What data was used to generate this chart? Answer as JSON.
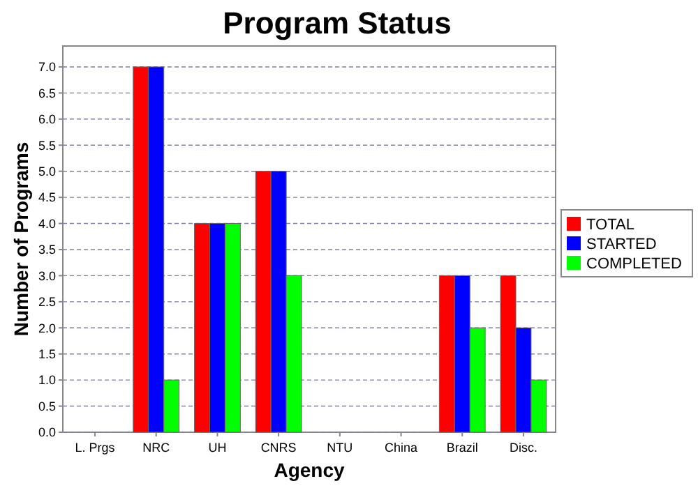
{
  "chart_data": {
    "type": "bar",
    "title": "Program Status",
    "xlabel": "Agency",
    "ylabel": "Number of Programs",
    "categories": [
      "L. Prgs",
      "NRC",
      "UH",
      "CNRS",
      "NTU",
      "China",
      "Brazil",
      "Disc."
    ],
    "series": [
      {
        "name": "TOTAL",
        "color": "#ff0000",
        "values": [
          0,
          7,
          4,
          5,
          0,
          0,
          3,
          3
        ]
      },
      {
        "name": "STARTED",
        "color": "#0000ff",
        "values": [
          0,
          7,
          4,
          5,
          0,
          0,
          3,
          2
        ]
      },
      {
        "name": "COMPLETED",
        "color": "#00ff00",
        "values": [
          0,
          1,
          4,
          3,
          0,
          0,
          2,
          1
        ]
      }
    ],
    "ylim": [
      0,
      7.4
    ],
    "yticks": [
      {
        "value": 0,
        "label": "0.0"
      },
      {
        "value": 0.5,
        "label": "0.5"
      },
      {
        "value": 1,
        "label": "1.0"
      },
      {
        "value": 1.5,
        "label": "1.5"
      },
      {
        "value": 2,
        "label": "2.0"
      },
      {
        "value": 2.5,
        "label": "2.5"
      },
      {
        "value": 3,
        "label": "3.0"
      },
      {
        "value": 3.5,
        "label": "3.5"
      },
      {
        "value": 4,
        "label": "4.0"
      },
      {
        "value": 4.5,
        "label": "4.5"
      },
      {
        "value": 5,
        "label": "5.0"
      },
      {
        "value": 5.5,
        "label": "5.5"
      },
      {
        "value": 6,
        "label": "6.0"
      },
      {
        "value": 6.5,
        "label": "6.5"
      },
      {
        "value": 7,
        "label": "7.0"
      }
    ],
    "grid": "y",
    "legend": "right"
  }
}
